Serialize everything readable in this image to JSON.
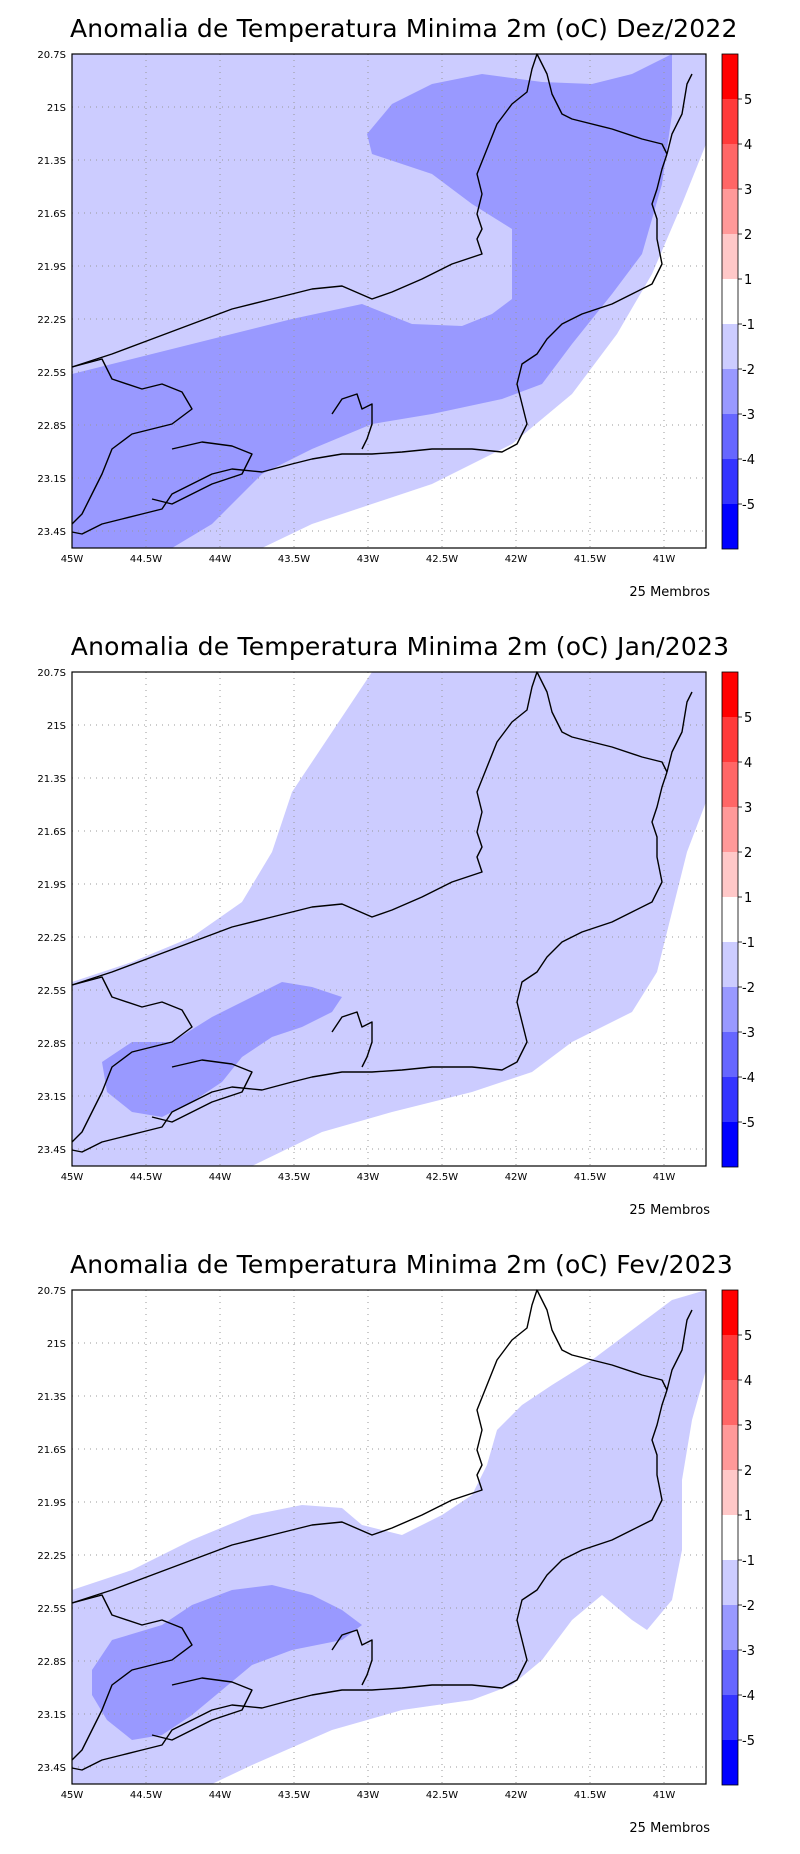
{
  "panels": [
    {
      "title": "Anomalia de Temperatura Minima 2m (oC) Dez/2022",
      "footer": "25 Membros"
    },
    {
      "title": "Anomalia de Temperatura Minima 2m (oC) Jan/2023",
      "footer": "25 Membros"
    },
    {
      "title": "Anomalia de Temperatura Minima 2m (oC) Fev/2023",
      "footer": "25 Membros"
    }
  ],
  "axes": {
    "x_ticks": [
      "45W",
      "44.5W",
      "44W",
      "43.5W",
      "43W",
      "42.5W",
      "42W",
      "41.5W",
      "41W"
    ],
    "y_ticks": [
      "20.7S",
      "21S",
      "21.3S",
      "21.6S",
      "21.9S",
      "22.2S",
      "22.5S",
      "22.8S",
      "23.1S",
      "23.4S"
    ],
    "lon_range": [
      -45,
      -40.7
    ],
    "lat_range": [
      -23.5,
      -20.7
    ],
    "grid": "dotted"
  },
  "colorbar": {
    "labels": [
      "5",
      "4",
      "3",
      "2",
      "1",
      "-1",
      "-2",
      "-3",
      "-4",
      "-5"
    ],
    "colors": [
      "#ff0000",
      "#ff3a3a",
      "#ff6666",
      "#ff9999",
      "#ffc8c8",
      "#ffffff",
      "#ccccff",
      "#9999ff",
      "#6666ff",
      "#3434ff",
      "#0000ff"
    ]
  },
  "fill_colors": {
    "light": "#ccccff",
    "medium": "#9999ff"
  }
}
